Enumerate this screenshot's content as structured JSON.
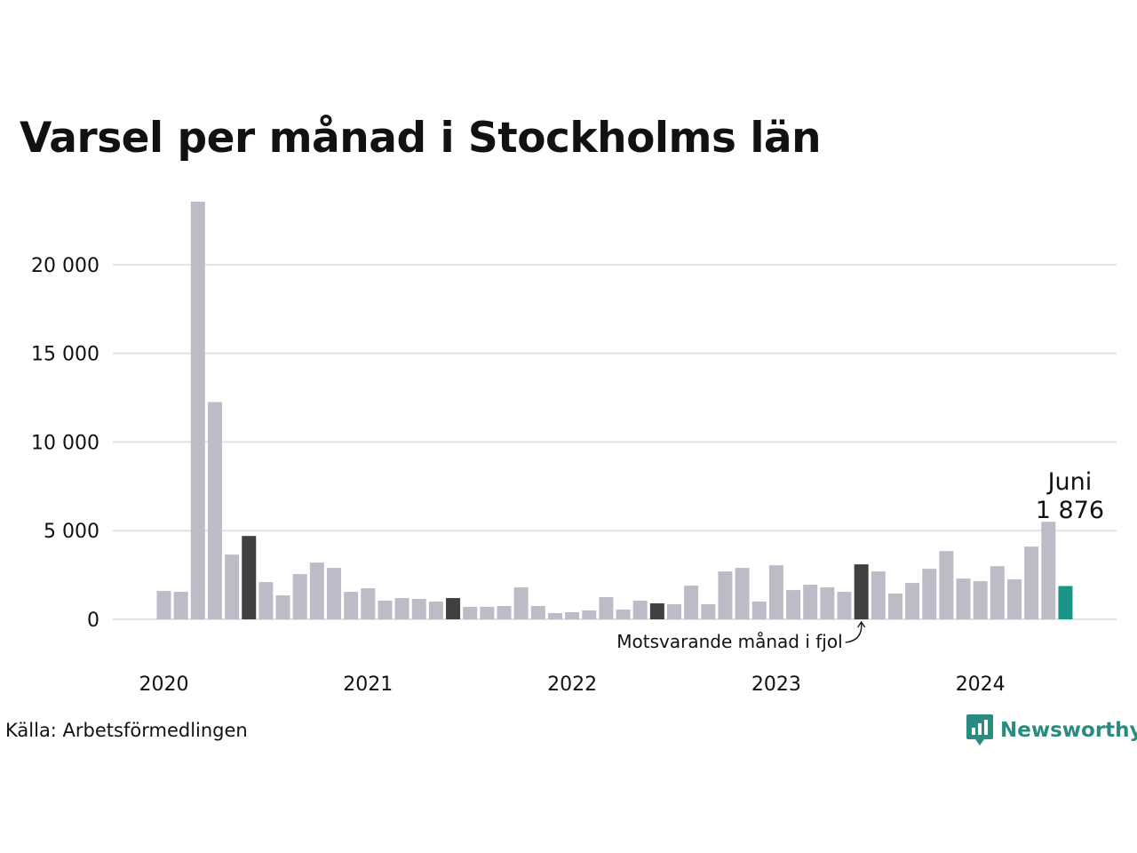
{
  "title": "Varsel per månad i Stockholms län",
  "source": "Källa: Arbetsförmedlingen",
  "brand": {
    "name": "Newsworthy",
    "icon": "newsworthy-logo-icon",
    "color": "#2a8c80"
  },
  "colors": {
    "bar": "#bdbbc8",
    "same_month": "#404040",
    "current": "#1b9585",
    "grid": "#e2e2e2"
  },
  "chart_data": {
    "type": "bar",
    "title": "Varsel per månad i Stockholms län",
    "x_start": "2020-01",
    "x_end": "2024-06",
    "x_ticks": [
      "2020",
      "2021",
      "2022",
      "2023",
      "2024"
    ],
    "y_ticks": [
      "0",
      "5 000",
      "10 000",
      "15 000",
      "20 000"
    ],
    "y_tick_values": [
      0,
      5000,
      10000,
      15000,
      20000
    ],
    "ylim": [
      0,
      24500
    ],
    "grid": true,
    "values": [
      1600,
      1550,
      23550,
      12250,
      3650,
      4700,
      2100,
      1350,
      2550,
      3200,
      2900,
      1550,
      1750,
      1050,
      1200,
      1150,
      1000,
      1200,
      700,
      700,
      750,
      1800,
      750,
      350,
      400,
      500,
      1250,
      550,
      1050,
      900,
      850,
      1900,
      850,
      2700,
      2900,
      1000,
      3050,
      1650,
      1950,
      1800,
      1550,
      3100,
      2700,
      1450,
      2050,
      2850,
      3850,
      2300,
      2150,
      3000,
      2250,
      4100,
      5500,
      1876
    ],
    "highlight_same_month": [
      "2020-06",
      "2021-06",
      "2022-06",
      "2023-06"
    ],
    "current_month": "2024-06",
    "annotation_current": {
      "label": "Juni",
      "value": "1 876"
    },
    "annotation_last_year": "Motsvarande månad i fjol"
  }
}
